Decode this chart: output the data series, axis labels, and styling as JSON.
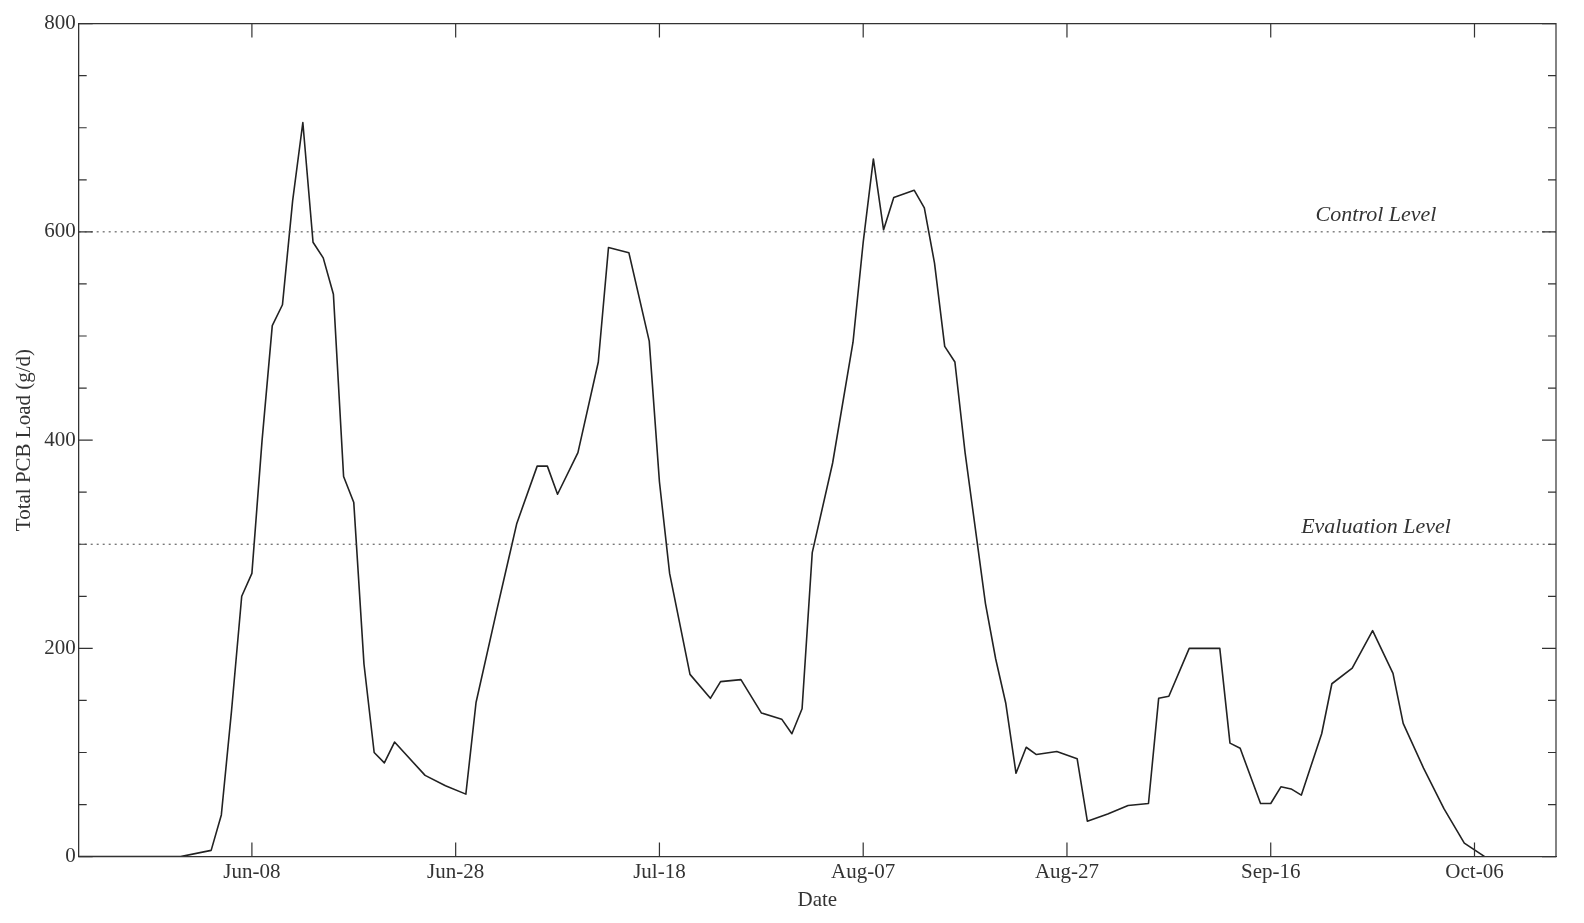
{
  "chart_data": {
    "type": "line",
    "xlabel": "Date",
    "ylabel": "Total PCB Load (g/d)",
    "x": [
      "--05-22",
      "--06-01",
      "--06-04",
      "--06-05",
      "--06-06",
      "--06-07",
      "--06-08",
      "--06-09",
      "--06-10",
      "--06-11",
      "--06-12",
      "--06-13",
      "--06-14",
      "--06-15",
      "--06-16",
      "--06-17",
      "--06-18",
      "--06-19",
      "--06-20",
      "--06-21",
      "--06-22",
      "--06-25",
      "--06-27",
      "--06-29",
      "--06-30",
      "--07-02",
      "--07-04",
      "--07-06",
      "--07-07",
      "--07-08",
      "--07-10",
      "--07-12",
      "--07-13",
      "--07-15",
      "--07-17",
      "--07-18",
      "--07-19",
      "--07-21",
      "--07-23",
      "--07-24",
      "--07-26",
      "--07-28",
      "--07-30",
      "--07-31",
      "--08-01",
      "--08-02",
      "--08-04",
      "--08-06",
      "--08-07",
      "--08-08",
      "--08-09",
      "--08-10",
      "--08-12",
      "--08-13",
      "--08-14",
      "--08-15",
      "--08-16",
      "--08-17",
      "--08-19",
      "--08-20",
      "--08-21",
      "--08-22",
      "--08-23",
      "--08-24",
      "--08-26",
      "--08-28",
      "--08-29",
      "--08-31",
      "--09-02",
      "--09-04",
      "--09-05",
      "--09-06",
      "--09-08",
      "--09-11",
      "--09-12",
      "--09-13",
      "--09-15",
      "--09-16",
      "--09-17",
      "--09-18",
      "--09-19",
      "--09-21",
      "--09-22",
      "--09-24",
      "--09-26",
      "--09-28",
      "--09-29",
      "--10-01",
      "--10-03",
      "--10-05",
      "--10-07"
    ],
    "series": [
      {
        "color": "#222222",
        "values": [
          0,
          0,
          6,
          40,
          140,
          250,
          272,
          400,
          510,
          530,
          630,
          705,
          590,
          575,
          540,
          365,
          340,
          185,
          100,
          90,
          110,
          78,
          68,
          60,
          148,
          235,
          320,
          375,
          375,
          348,
          388,
          475,
          585,
          580,
          495,
          360,
          272,
          175,
          152,
          168,
          170,
          138,
          132,
          118,
          142,
          292,
          378,
          494,
          590,
          670,
          602,
          633,
          640,
          623,
          570,
          490,
          475,
          388,
          243,
          190,
          147,
          80,
          105,
          98,
          101,
          94,
          34,
          41,
          49,
          51,
          152,
          154,
          200,
          200,
          109,
          104,
          51,
          51,
          67,
          65,
          59,
          118,
          166,
          181,
          217,
          176,
          128,
          85,
          46,
          13,
          0
        ]
      }
    ],
    "xlim": [
      "--05-22",
      "--10-14"
    ],
    "xticks": [
      {
        "value": "--06-08",
        "label": "Jun-08"
      },
      {
        "value": "--06-28",
        "label": "Jun-28"
      },
      {
        "value": "--07-18",
        "label": "Jul-18"
      },
      {
        "value": "--08-07",
        "label": "Aug-07"
      },
      {
        "value": "--08-27",
        "label": "Aug-27"
      },
      {
        "value": "--09-16",
        "label": "Sep-16"
      },
      {
        "value": "--10-06",
        "label": "Oct-06"
      }
    ],
    "ylim": [
      0,
      800
    ],
    "yticks": [
      0,
      {
        "value": 50,
        "label": null
      },
      {
        "value": 100,
        "label": null
      },
      {
        "value": 150,
        "label": null
      },
      200,
      {
        "value": 250,
        "label": null
      },
      {
        "value": 300,
        "label": null
      },
      {
        "value": 350,
        "label": null
      },
      400,
      {
        "value": 450,
        "label": null
      },
      {
        "value": 500,
        "label": null
      },
      {
        "value": 550,
        "label": null
      },
      600,
      {
        "value": 650,
        "label": null
      },
      {
        "value": 700,
        "label": null
      },
      {
        "value": 750,
        "label": null
      },
      800
    ],
    "ref_lines": [
      {
        "axis": "y",
        "value": 600,
        "label": "Control Level",
        "line_style": "dotted"
      },
      {
        "axis": "y",
        "value": 300,
        "label": "Evaluation Level",
        "line_style": "dotted"
      }
    ],
    "grid": false,
    "legend": false,
    "marker": "none",
    "line_style": "solid"
  }
}
